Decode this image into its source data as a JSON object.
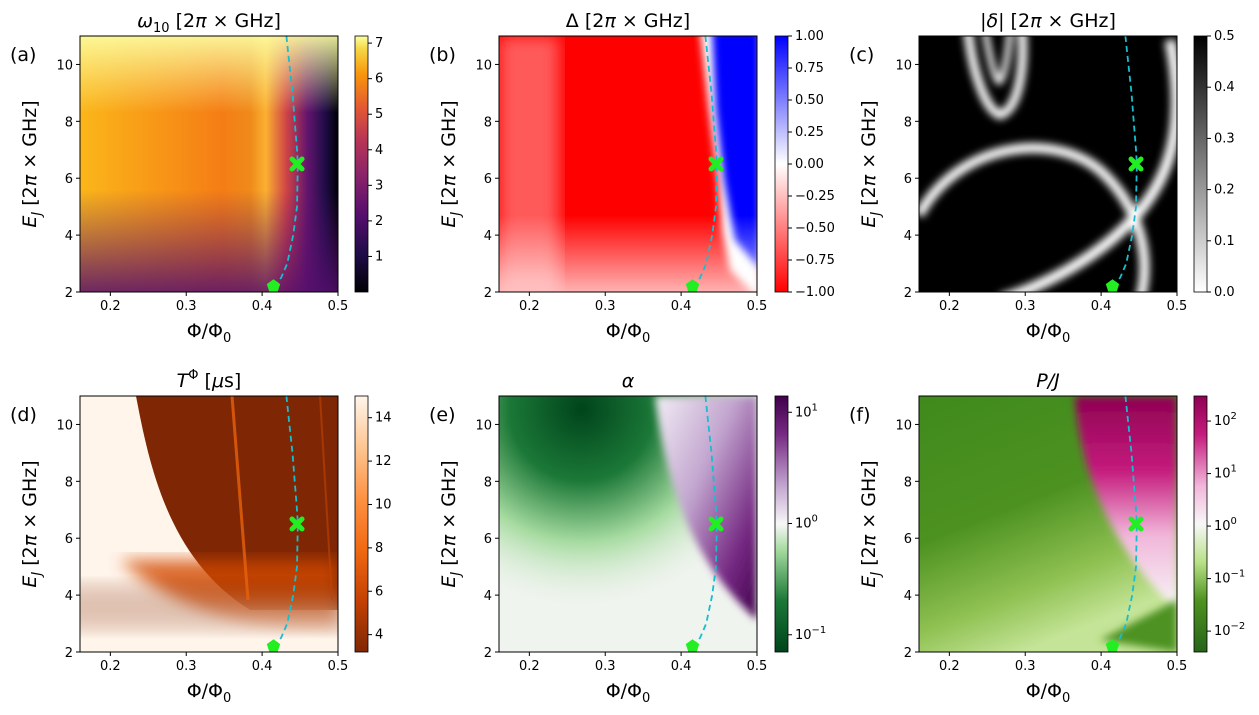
{
  "figure": {
    "caption": ""
  },
  "chart_data": [
    {
      "type": "heatmap",
      "panel_label": "(a)",
      "title": "ω10 [2π × GHz]",
      "xlabel": "Φ/Φ0",
      "ylabel": "E_J [2π × GHz]",
      "xlim": [
        0.16,
        0.5
      ],
      "ylim": [
        2,
        11
      ],
      "xticks": [
        "0.2",
        "0.3",
        "0.4",
        "0.5"
      ],
      "yticks": [
        "2",
        "4",
        "6",
        "8",
        "10"
      ],
      "colormap": "inferno",
      "colorbar_range": [
        0,
        7.2
      ],
      "colorbar_ticks": [
        "1",
        "2",
        "3",
        "4",
        "5",
        "6",
        "7"
      ]
    },
    {
      "type": "heatmap",
      "panel_label": "(b)",
      "title": "Δ [2π × GHz]",
      "xlabel": "Φ/Φ0",
      "ylabel": "E_J [2π × GHz]",
      "xlim": [
        0.16,
        0.5
      ],
      "ylim": [
        2,
        11
      ],
      "xticks": [
        "0.2",
        "0.3",
        "0.4",
        "0.5"
      ],
      "yticks": [
        "2",
        "4",
        "6",
        "8",
        "10"
      ],
      "colormap": "bwr_r",
      "colorbar_range": [
        -1,
        1
      ],
      "colorbar_ticks": [
        "1.00",
        "0.75",
        "0.50",
        "0.25",
        "0.00",
        "−0.25",
        "−0.50",
        "−0.75",
        "−1.00"
      ]
    },
    {
      "type": "heatmap",
      "panel_label": "(c)",
      "title": "|δ| [2π × GHz]",
      "xlabel": "Φ/Φ0",
      "ylabel": "E_J [2π × GHz]",
      "xlim": [
        0.16,
        0.5
      ],
      "ylim": [
        2,
        11
      ],
      "xticks": [
        "0.2",
        "0.3",
        "0.4",
        "0.5"
      ],
      "yticks": [
        "2",
        "4",
        "6",
        "8",
        "10"
      ],
      "colormap": "gray_r",
      "colorbar_range": [
        0,
        0.5
      ],
      "colorbar_ticks": [
        "0.5",
        "0.4",
        "0.3",
        "0.2",
        "0.1",
        "0.0"
      ]
    },
    {
      "type": "heatmap",
      "panel_label": "(d)",
      "title": "TΦ [μs]",
      "xlabel": "Φ/Φ0",
      "ylabel": "E_J [2π × GHz]",
      "xlim": [
        0.16,
        0.5
      ],
      "ylim": [
        2,
        11
      ],
      "xticks": [
        "0.2",
        "0.3",
        "0.4",
        "0.5"
      ],
      "yticks": [
        "2",
        "4",
        "6",
        "8",
        "10"
      ],
      "colormap": "Oranges",
      "colorbar_range": [
        3.2,
        15
      ],
      "colorbar_ticks": [
        "14",
        "12",
        "10",
        "8",
        "6",
        "4"
      ]
    },
    {
      "type": "heatmap",
      "panel_label": "(e)",
      "title": "α",
      "xlabel": "Φ/Φ0",
      "ylabel": "E_J [2π × GHz]",
      "xlim": [
        0.16,
        0.5
      ],
      "ylim": [
        2,
        11
      ],
      "xticks": [
        "0.2",
        "0.3",
        "0.4",
        "0.5"
      ],
      "yticks": [
        "2",
        "4",
        "6",
        "8",
        "10"
      ],
      "colormap": "PRGn (log)",
      "colorbar_range": [
        0.07,
        14
      ],
      "colorbar_ticks": [
        "10^1",
        "10^0",
        "10^−1"
      ]
    },
    {
      "type": "heatmap",
      "panel_label": "(f)",
      "title": "P/J",
      "xlabel": "Φ/Φ0",
      "ylabel": "E_J [2π × GHz]",
      "xlim": [
        0.16,
        0.5
      ],
      "ylim": [
        2,
        11
      ],
      "xticks": [
        "0.2",
        "0.3",
        "0.4",
        "0.5"
      ],
      "yticks": [
        "2",
        "4",
        "6",
        "8",
        "10"
      ],
      "colormap": "PiYG (log)",
      "colorbar_range": [
        0.004,
        300
      ],
      "colorbar_ticks": [
        "10^2",
        "10^1",
        "10^0",
        "10^−1",
        "10^−2"
      ]
    }
  ],
  "overlay": {
    "curve_style": "dashed cyan",
    "curve": {
      "x": [
        0.432,
        0.436,
        0.44,
        0.443,
        0.446,
        0.447,
        0.446,
        0.441,
        0.433,
        0.425,
        0.415
      ],
      "y": [
        11,
        10,
        9,
        8,
        7,
        6.5,
        5,
        4,
        3,
        2.5,
        2.2
      ]
    },
    "markers": [
      {
        "x": 0.446,
        "y": 6.5,
        "shape": "X",
        "color": "#22ee22"
      },
      {
        "x": 0.415,
        "y": 2.2,
        "shape": "pentagon",
        "color": "#22ee22"
      }
    ]
  }
}
